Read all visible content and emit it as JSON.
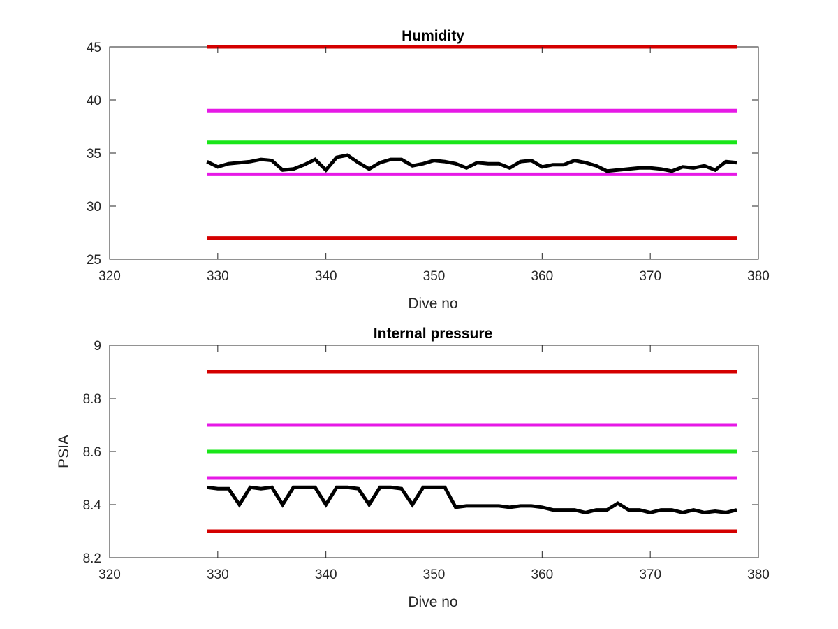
{
  "chart_data": [
    {
      "type": "line",
      "title": "Humidity",
      "xlabel": "Dive no",
      "ylabel": "",
      "xlim": [
        320,
        380
      ],
      "ylim": [
        25,
        45
      ],
      "xticks": [
        "320",
        "330",
        "340",
        "350",
        "360",
        "370",
        "380"
      ],
      "yticks": [
        "25",
        "30",
        "35",
        "40",
        "45"
      ],
      "grid": false,
      "series": [
        {
          "color": "#d40000",
          "x": [
            329,
            378
          ],
          "y": [
            45,
            45
          ]
        },
        {
          "color": "#e619e6",
          "x": [
            329,
            378
          ],
          "y": [
            39,
            39
          ]
        },
        {
          "color": "#19e619",
          "x": [
            329,
            378
          ],
          "y": [
            36,
            36
          ]
        },
        {
          "color": "#e619e6",
          "x": [
            329,
            378
          ],
          "y": [
            33,
            33
          ]
        },
        {
          "color": "#d40000",
          "x": [
            329,
            378
          ],
          "y": [
            27,
            27
          ]
        },
        {
          "color": "#000000",
          "x": [
            329,
            330,
            331,
            332,
            333,
            334,
            335,
            336,
            337,
            338,
            339,
            340,
            341,
            342,
            343,
            344,
            345,
            346,
            347,
            348,
            349,
            350,
            351,
            352,
            353,
            354,
            355,
            356,
            357,
            358,
            359,
            360,
            361,
            362,
            363,
            364,
            365,
            366,
            367,
            368,
            369,
            370,
            371,
            372,
            373,
            374,
            375,
            376,
            377,
            378
          ],
          "y": [
            34.2,
            33.7,
            34.0,
            34.1,
            34.2,
            34.4,
            34.3,
            33.4,
            33.5,
            33.9,
            34.4,
            33.4,
            34.6,
            34.8,
            34.1,
            33.5,
            34.1,
            34.4,
            34.4,
            33.8,
            34.0,
            34.3,
            34.2,
            34.0,
            33.6,
            34.1,
            34.0,
            34.0,
            33.6,
            34.2,
            34.3,
            33.7,
            33.9,
            33.9,
            34.3,
            34.1,
            33.8,
            33.3,
            33.4,
            33.5,
            33.6,
            33.6,
            33.5,
            33.3,
            33.7,
            33.6,
            33.8,
            33.4,
            34.2,
            34.1
          ]
        }
      ]
    },
    {
      "type": "line",
      "title": "Internal pressure",
      "xlabel": "Dive no",
      "ylabel": "PSIA",
      "xlim": [
        320,
        380
      ],
      "ylim": [
        8.2,
        9
      ],
      "xticks": [
        "320",
        "330",
        "340",
        "350",
        "360",
        "370",
        "380"
      ],
      "yticks": [
        "8.2",
        "8.4",
        "8.6",
        "8.8",
        "9"
      ],
      "grid": false,
      "series": [
        {
          "color": "#d40000",
          "x": [
            329,
            378
          ],
          "y": [
            8.9,
            8.9
          ]
        },
        {
          "color": "#e619e6",
          "x": [
            329,
            378
          ],
          "y": [
            8.7,
            8.7
          ]
        },
        {
          "color": "#19e619",
          "x": [
            329,
            378
          ],
          "y": [
            8.6,
            8.6
          ]
        },
        {
          "color": "#e619e6",
          "x": [
            329,
            378
          ],
          "y": [
            8.5,
            8.5
          ]
        },
        {
          "color": "#d40000",
          "x": [
            329,
            378
          ],
          "y": [
            8.3,
            8.3
          ]
        },
        {
          "color": "#000000",
          "x": [
            329,
            330,
            331,
            332,
            333,
            334,
            335,
            336,
            337,
            338,
            339,
            340,
            341,
            342,
            343,
            344,
            345,
            346,
            347,
            348,
            349,
            350,
            351,
            352,
            353,
            354,
            355,
            356,
            357,
            358,
            359,
            360,
            361,
            362,
            363,
            364,
            365,
            366,
            367,
            368,
            369,
            370,
            371,
            372,
            373,
            374,
            375,
            376,
            377,
            378
          ],
          "y": [
            8.465,
            8.46,
            8.46,
            8.4,
            8.465,
            8.46,
            8.465,
            8.4,
            8.465,
            8.465,
            8.465,
            8.4,
            8.465,
            8.465,
            8.46,
            8.4,
            8.465,
            8.465,
            8.46,
            8.4,
            8.465,
            8.465,
            8.465,
            8.39,
            8.395,
            8.395,
            8.395,
            8.395,
            8.39,
            8.395,
            8.395,
            8.39,
            8.38,
            8.38,
            8.38,
            8.37,
            8.38,
            8.38,
            8.405,
            8.38,
            8.38,
            8.37,
            8.38,
            8.38,
            8.37,
            8.38,
            8.37,
            8.375,
            8.37,
            8.38
          ]
        }
      ]
    }
  ]
}
